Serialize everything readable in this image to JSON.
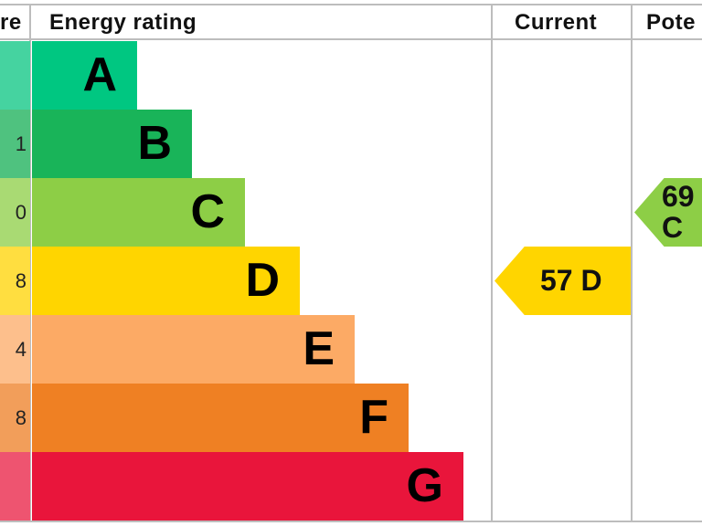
{
  "headers": {
    "score": "re",
    "rating": "Energy rating",
    "current": "Current",
    "potential": "Pote"
  },
  "chart_data": {
    "type": "table",
    "bands": [
      {
        "letter": "A",
        "score_partial": "",
        "color": "#00c781",
        "score_color": "#45d3a0"
      },
      {
        "letter": "B",
        "score_partial": "1",
        "color": "#19b459",
        "score_color": "#4fc27f"
      },
      {
        "letter": "C",
        "score_partial": "0",
        "color": "#8dce46",
        "score_color": "#a9da73"
      },
      {
        "letter": "D",
        "score_partial": "8",
        "color": "#ffd500",
        "score_color": "#ffde40"
      },
      {
        "letter": "E",
        "score_partial": "4",
        "color": "#fcaa65",
        "score_color": "#fdbf8c"
      },
      {
        "letter": "F",
        "score_partial": "8",
        "color": "#ef8023",
        "score_color": "#f29e5a"
      },
      {
        "letter": "G",
        "score_partial": "",
        "color": "#e9153b",
        "score_color": "#ee5470"
      }
    ],
    "current": {
      "label": "57 D",
      "value": 57,
      "band": "D",
      "color": "#ffd500"
    },
    "potential": {
      "label": "69 C",
      "band": "C",
      "color": "#8dce46"
    }
  }
}
